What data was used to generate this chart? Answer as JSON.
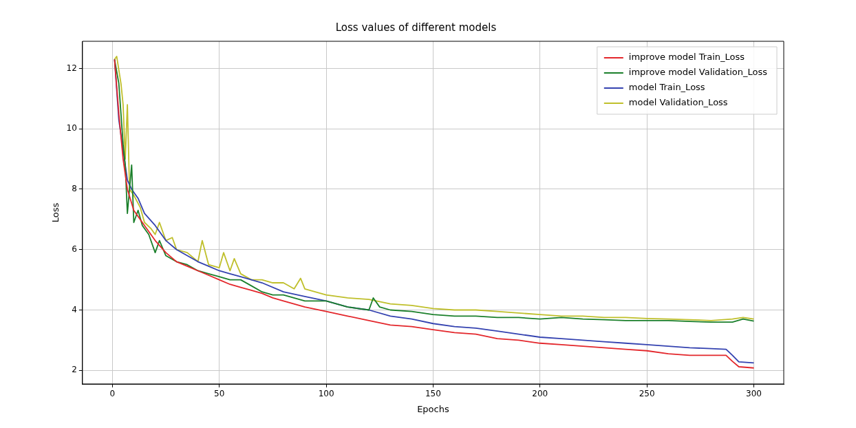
{
  "chart_data": {
    "type": "line",
    "title": "Loss values of different models",
    "xlabel": "Epochs",
    "ylabel": "Loss",
    "xlim": [
      -14,
      314
    ],
    "ylim": [
      1.55,
      12.9
    ],
    "xticks": [
      0,
      50,
      100,
      150,
      200,
      250,
      300
    ],
    "yticks": [
      2,
      4,
      6,
      8,
      10,
      12
    ],
    "grid": true,
    "legend": "top right",
    "marker": "none",
    "line_style": "solid",
    "series": [
      {
        "name": "improve model Train_Loss",
        "color": "#e3262b",
        "x": [
          1,
          3,
          5,
          7,
          10,
          12,
          15,
          18,
          20,
          25,
          30,
          35,
          40,
          45,
          50,
          55,
          60,
          65,
          70,
          75,
          80,
          90,
          100,
          110,
          120,
          130,
          140,
          150,
          160,
          170,
          180,
          190,
          200,
          210,
          220,
          230,
          240,
          250,
          260,
          270,
          280,
          287,
          290,
          293,
          300
        ],
        "values": [
          12.3,
          10.5,
          9.0,
          8.0,
          7.3,
          7.1,
          6.8,
          6.5,
          6.3,
          5.9,
          5.6,
          5.45,
          5.3,
          5.15,
          5.0,
          4.85,
          4.75,
          4.65,
          4.55,
          4.4,
          4.3,
          4.1,
          3.95,
          3.8,
          3.65,
          3.5,
          3.45,
          3.35,
          3.25,
          3.2,
          3.05,
          3.0,
          2.9,
          2.85,
          2.8,
          2.75,
          2.7,
          2.65,
          2.55,
          2.5,
          2.5,
          2.5,
          2.3,
          2.12,
          2.08
        ]
      },
      {
        "name": "improve model Validation_Loss",
        "color": "#1a7f2a",
        "x": [
          1,
          3,
          5,
          6,
          7,
          8,
          9,
          10,
          12,
          14,
          17,
          20,
          22,
          25,
          30,
          35,
          40,
          45,
          50,
          55,
          60,
          65,
          70,
          75,
          80,
          90,
          100,
          110,
          115,
          120,
          122,
          125,
          130,
          140,
          150,
          160,
          170,
          180,
          190,
          200,
          210,
          220,
          230,
          240,
          250,
          260,
          270,
          280,
          290,
          295,
          300
        ],
        "values": [
          12.3,
          11.5,
          9.5,
          8.8,
          7.2,
          8.0,
          8.8,
          6.9,
          7.3,
          6.8,
          6.5,
          5.9,
          6.3,
          5.8,
          5.6,
          5.5,
          5.3,
          5.2,
          5.1,
          5.0,
          5.0,
          4.8,
          4.6,
          4.5,
          4.5,
          4.3,
          4.3,
          4.1,
          4.05,
          4.0,
          4.4,
          4.1,
          4.0,
          3.95,
          3.85,
          3.8,
          3.8,
          3.75,
          3.75,
          3.7,
          3.75,
          3.7,
          3.68,
          3.65,
          3.65,
          3.65,
          3.62,
          3.6,
          3.6,
          3.7,
          3.63
        ]
      },
      {
        "name": "model Train_Loss",
        "color": "#3442b0",
        "x": [
          1,
          3,
          5,
          7,
          9,
          12,
          15,
          20,
          25,
          30,
          35,
          40,
          45,
          50,
          55,
          60,
          65,
          70,
          80,
          90,
          100,
          110,
          120,
          130,
          140,
          150,
          160,
          170,
          180,
          190,
          200,
          210,
          220,
          230,
          240,
          250,
          260,
          270,
          280,
          287,
          290,
          293,
          300
        ],
        "values": [
          12.3,
          10.3,
          9.3,
          8.3,
          8.0,
          7.7,
          7.2,
          6.8,
          6.3,
          6.0,
          5.8,
          5.6,
          5.45,
          5.3,
          5.2,
          5.1,
          5.0,
          4.9,
          4.6,
          4.45,
          4.3,
          4.1,
          4.0,
          3.8,
          3.7,
          3.55,
          3.45,
          3.4,
          3.3,
          3.2,
          3.1,
          3.05,
          3.0,
          2.95,
          2.9,
          2.85,
          2.8,
          2.75,
          2.72,
          2.7,
          2.5,
          2.28,
          2.25
        ]
      },
      {
        "name": "model Validation_Loss",
        "color": "#bfbf2a",
        "x": [
          1,
          2,
          4,
          5,
          6,
          7,
          8,
          10,
          13,
          15,
          18,
          20,
          22,
          25,
          28,
          30,
          35,
          40,
          42,
          45,
          50,
          52,
          55,
          57,
          60,
          65,
          70,
          75,
          80,
          85,
          88,
          90,
          100,
          110,
          120,
          130,
          140,
          150,
          160,
          170,
          180,
          190,
          200,
          210,
          220,
          230,
          240,
          250,
          260,
          270,
          280,
          290,
          295,
          300
        ],
        "values": [
          12.3,
          12.4,
          11.5,
          10.8,
          9.0,
          10.8,
          8.0,
          7.8,
          7.4,
          6.9,
          6.7,
          6.5,
          6.9,
          6.3,
          6.4,
          6.0,
          5.9,
          5.6,
          6.3,
          5.5,
          5.4,
          5.9,
          5.3,
          5.7,
          5.2,
          5.0,
          5.0,
          4.9,
          4.9,
          4.7,
          5.05,
          4.7,
          4.5,
          4.4,
          4.35,
          4.2,
          4.15,
          4.05,
          4.0,
          4.0,
          3.95,
          3.9,
          3.85,
          3.8,
          3.8,
          3.75,
          3.75,
          3.72,
          3.7,
          3.68,
          3.65,
          3.7,
          3.75,
          3.7
        ]
      }
    ]
  }
}
